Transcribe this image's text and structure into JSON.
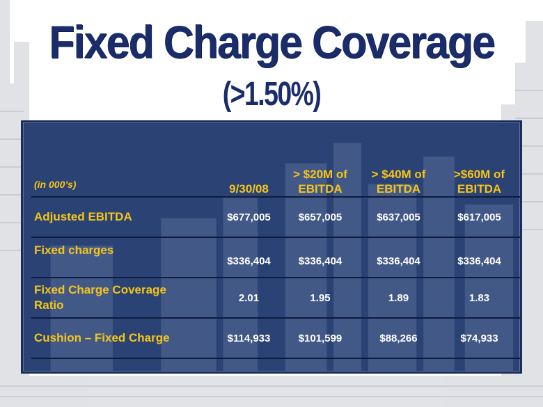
{
  "title": "Fixed Charge Coverage",
  "subtitle": "(>1.50%)",
  "table": {
    "unit_label": "(in 000’s)",
    "columns": [
      {
        "line1": "",
        "line2": "9/30/08"
      },
      {
        "line1": "> $20M of",
        "line2": "EBITDA"
      },
      {
        "line1": "> $40M of",
        "line2": "EBITDA"
      },
      {
        "line1": ">$60M of",
        "line2": "EBITDA"
      }
    ],
    "rows": [
      {
        "label": "Adjusted EBITDA",
        "values": [
          "$677,005",
          "$657,005",
          "$637,005",
          "$617,005"
        ]
      },
      {
        "label": "Fixed charges",
        "values": [
          "$336,404",
          "$336,404",
          "$336,404",
          "$336,404"
        ]
      },
      {
        "label_line1": "Fixed Charge Coverage",
        "label_line2": "Ratio",
        "values": [
          "2.01",
          "1.95",
          "1.89",
          "1.83"
        ]
      },
      {
        "label": "Cushion – Fixed Charge",
        "values": [
          "$114,933",
          "$101,599",
          "$88,266",
          "$74,933"
        ]
      }
    ]
  },
  "colors": {
    "title": "#1b2c6b",
    "panel": "#2b4374",
    "accent_text": "#f5c51a",
    "value_text": "#ffffff"
  }
}
